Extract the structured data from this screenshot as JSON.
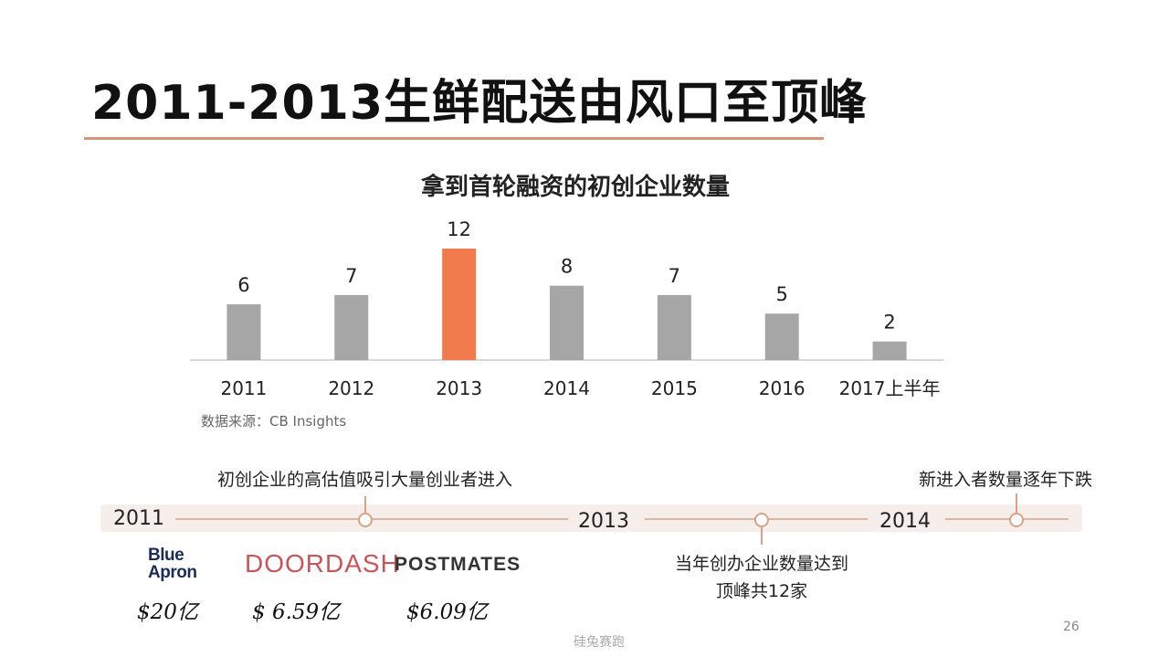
{
  "slide": {
    "title": "2011-2013生鲜配送由风口至顶峰",
    "page_number": "26",
    "watermark": "硅兔赛跑"
  },
  "chart_data": {
    "type": "bar",
    "title": "拿到首轮融资的初创企业数量",
    "categories": [
      "2011",
      "2012",
      "2013",
      "2014",
      "2015",
      "2016",
      "2017上半年"
    ],
    "values": [
      6,
      7,
      12,
      8,
      7,
      5,
      2
    ],
    "highlight_category": "2013",
    "colors": {
      "bar": "#a6a6a6",
      "highlight": "#f27b4e",
      "axis": "#cccccc"
    },
    "ylim": [
      0,
      12
    ],
    "grid": false,
    "data_labels": true,
    "source": "数据来源：CB Insights"
  },
  "timeline": {
    "years": [
      "2011",
      "2013",
      "2014"
    ],
    "notes": {
      "upper_left": "初创企业的高估值吸引大量创业者进入",
      "lower_middle_line1": "当年创办企业数量达到",
      "lower_middle_line2": "顶峰共12家",
      "upper_right": "新进入者数量逐年下跌"
    },
    "companies": [
      {
        "logo_line1": "Blue",
        "logo_line2": "Apron",
        "valuation": "$20亿"
      },
      {
        "logo": "DOORDASH",
        "valuation": "$ 6.59亿"
      },
      {
        "logo": "POSTMATES",
        "valuation": "$6.09亿"
      }
    ]
  }
}
